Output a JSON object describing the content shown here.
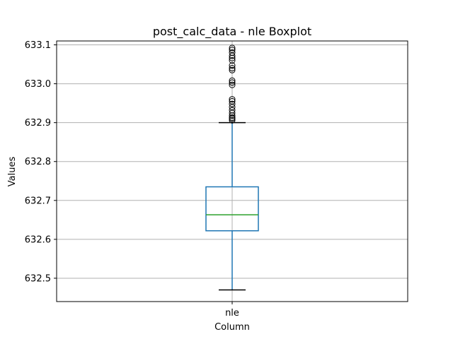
{
  "chart_data": {
    "type": "box",
    "title": "post_calc_data - nle Boxplot",
    "xlabel": "Column",
    "ylabel": "Values",
    "categories": [
      "nle"
    ],
    "ylim": [
      632.44,
      633.11
    ],
    "yticks": [
      632.5,
      632.6,
      632.7,
      632.8,
      632.9,
      633.0,
      633.1
    ],
    "ytick_labels": [
      "632.5",
      "632.6",
      "632.7",
      "632.8",
      "632.9",
      "633.0",
      "633.1"
    ],
    "grid": true,
    "boxes": [
      {
        "name": "nle",
        "whisker_low": 632.47,
        "q1": 632.622,
        "median": 632.663,
        "q3": 632.735,
        "whisker_high": 632.9,
        "outliers": [
          632.906,
          632.91,
          632.913,
          632.918,
          632.925,
          632.932,
          632.94,
          632.948,
          632.955,
          632.96,
          632.997,
          633.003,
          633.008,
          633.035,
          633.04,
          633.047,
          633.06,
          633.066,
          633.072,
          633.08,
          633.087,
          633.092
        ]
      }
    ],
    "colors": {
      "box": "#1f77b4",
      "median": "#2ca02c",
      "whisker_cap": "#000000",
      "grid": "#b0b0b0"
    }
  }
}
